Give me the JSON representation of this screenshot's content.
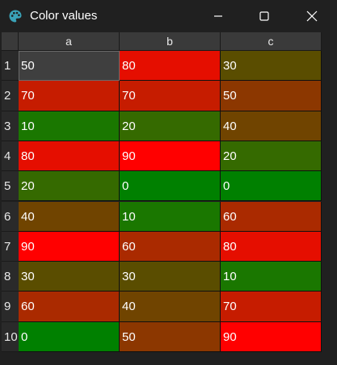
{
  "window": {
    "title": "Color values",
    "icon": "palette-icon"
  },
  "table": {
    "columns": [
      "a",
      "b",
      "c"
    ],
    "rows": [
      {
        "label": "1",
        "values": [
          {
            "text": "50",
            "color": "#3f3f3f"
          },
          {
            "text": "80",
            "color": "#e50e00"
          },
          {
            "text": "30",
            "color": "#5a4d00"
          }
        ]
      },
      {
        "label": "2",
        "values": [
          {
            "text": "70",
            "color": "#c61c00"
          },
          {
            "text": "70",
            "color": "#c61c00"
          },
          {
            "text": "50",
            "color": "#8c3700"
          }
        ]
      },
      {
        "label": "3",
        "values": [
          {
            "text": "10",
            "color": "#1a7700"
          },
          {
            "text": "20",
            "color": "#356a00"
          },
          {
            "text": "40",
            "color": "#704400"
          }
        ]
      },
      {
        "label": "4",
        "values": [
          {
            "text": "80",
            "color": "#e50e00"
          },
          {
            "text": "90",
            "color": "#ff0000"
          },
          {
            "text": "20",
            "color": "#356a00"
          }
        ]
      },
      {
        "label": "5",
        "values": [
          {
            "text": "20",
            "color": "#356a00"
          },
          {
            "text": "0",
            "color": "#008000"
          },
          {
            "text": "0",
            "color": "#008000"
          }
        ]
      },
      {
        "label": "6",
        "values": [
          {
            "text": "40",
            "color": "#704400"
          },
          {
            "text": "10",
            "color": "#1a7700"
          },
          {
            "text": "60",
            "color": "#aa2a00"
          }
        ]
      },
      {
        "label": "7",
        "values": [
          {
            "text": "90",
            "color": "#ff0000"
          },
          {
            "text": "60",
            "color": "#aa2a00"
          },
          {
            "text": "80",
            "color": "#e50e00"
          }
        ]
      },
      {
        "label": "8",
        "values": [
          {
            "text": "30",
            "color": "#5a4d00"
          },
          {
            "text": "30",
            "color": "#5a4d00"
          },
          {
            "text": "10",
            "color": "#1a7700"
          }
        ]
      },
      {
        "label": "9",
        "values": [
          {
            "text": "60",
            "color": "#aa2a00"
          },
          {
            "text": "40",
            "color": "#704400"
          },
          {
            "text": "70",
            "color": "#c61c00"
          }
        ]
      },
      {
        "label": "10",
        "values": [
          {
            "text": "0",
            "color": "#008000"
          },
          {
            "text": "50",
            "color": "#8c3700"
          },
          {
            "text": "90",
            "color": "#ff0000"
          }
        ]
      }
    ]
  }
}
